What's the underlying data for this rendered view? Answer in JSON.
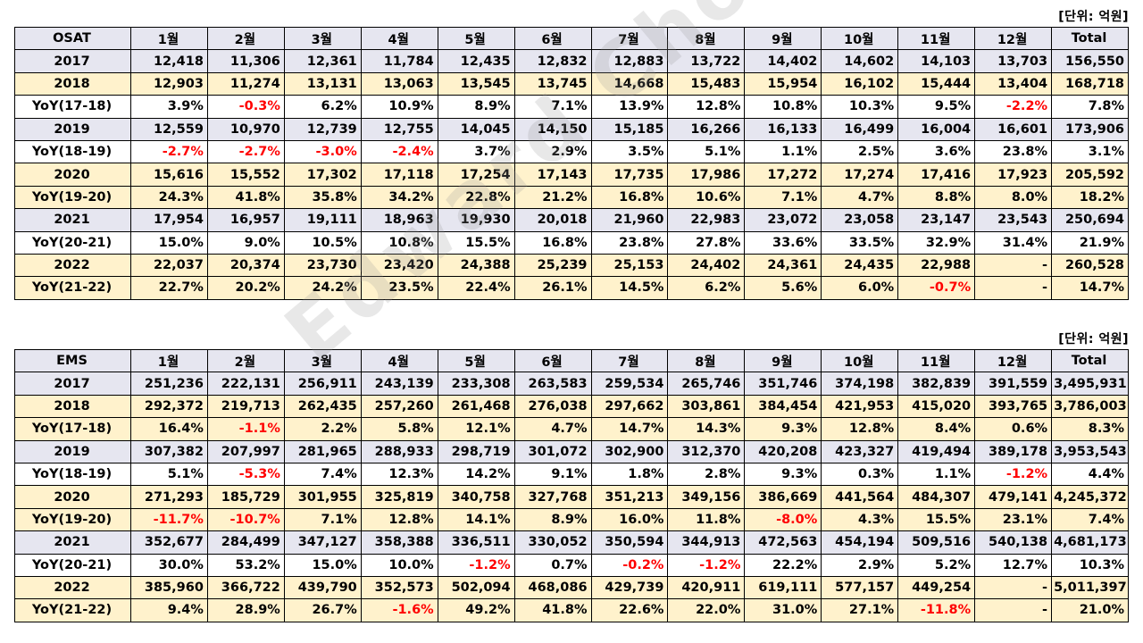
{
  "unit_label": "[단위: 억원]",
  "watermark": "Edward Choi",
  "tables": [
    {
      "header": [
        "OSAT",
        "1월",
        "2월",
        "3월",
        "4월",
        "5월",
        "6월",
        "7월",
        "8월",
        "9월",
        "10월",
        "11월",
        "12월",
        "Total"
      ],
      "rows": [
        {
          "kind": "year-a",
          "cells": [
            "2017",
            "12,418",
            "11,306",
            "12,361",
            "11,784",
            "12,435",
            "12,832",
            "12,883",
            "13,722",
            "14,402",
            "14,602",
            "14,103",
            "13,703",
            "156,550"
          ]
        },
        {
          "kind": "year-b",
          "cells": [
            "2018",
            "12,903",
            "11,274",
            "13,131",
            "13,063",
            "13,545",
            "13,745",
            "14,668",
            "15,483",
            "15,954",
            "16,102",
            "15,444",
            "13,404",
            "168,718"
          ]
        },
        {
          "kind": "yoy",
          "cells": [
            "YoY(17-18)",
            "3.9%",
            "-0.3%",
            "6.2%",
            "10.9%",
            "8.9%",
            "7.1%",
            "13.9%",
            "12.8%",
            "10.8%",
            "10.3%",
            "9.5%",
            "-2.2%",
            "7.8%"
          ]
        },
        {
          "kind": "year-a",
          "cells": [
            "2019",
            "12,559",
            "10,970",
            "12,739",
            "12,755",
            "14,045",
            "14,150",
            "15,185",
            "16,266",
            "16,133",
            "16,499",
            "16,004",
            "16,601",
            "173,906"
          ]
        },
        {
          "kind": "yoy",
          "cells": [
            "YoY(18-19)",
            "-2.7%",
            "-2.7%",
            "-3.0%",
            "-2.4%",
            "3.7%",
            "2.9%",
            "3.5%",
            "5.1%",
            "1.1%",
            "2.5%",
            "3.6%",
            "23.8%",
            "3.1%"
          ]
        },
        {
          "kind": "year-b",
          "cells": [
            "2020",
            "15,616",
            "15,552",
            "17,302",
            "17,118",
            "17,254",
            "17,143",
            "17,735",
            "17,986",
            "17,272",
            "17,274",
            "17,416",
            "17,923",
            "205,592"
          ]
        },
        {
          "kind": "year-b",
          "cells": [
            "YoY(19-20)",
            "24.3%",
            "41.8%",
            "35.8%",
            "34.2%",
            "22.8%",
            "21.2%",
            "16.8%",
            "10.6%",
            "7.1%",
            "4.7%",
            "8.8%",
            "8.0%",
            "18.2%"
          ]
        },
        {
          "kind": "year-a",
          "cells": [
            "2021",
            "17,954",
            "16,957",
            "19,111",
            "18,963",
            "19,930",
            "20,018",
            "21,960",
            "22,983",
            "23,072",
            "23,058",
            "23,147",
            "23,543",
            "250,694"
          ]
        },
        {
          "kind": "yoy",
          "cells": [
            "YoY(20-21)",
            "15.0%",
            "9.0%",
            "10.5%",
            "10.8%",
            "15.5%",
            "16.8%",
            "23.8%",
            "27.8%",
            "33.6%",
            "33.5%",
            "32.9%",
            "31.4%",
            "21.9%"
          ]
        },
        {
          "kind": "year-b",
          "cells": [
            "2022",
            "22,037",
            "20,374",
            "23,730",
            "23,420",
            "24,388",
            "25,239",
            "25,153",
            "24,402",
            "24,361",
            "24,435",
            "22,988",
            "-",
            "260,528"
          ]
        },
        {
          "kind": "year-b",
          "cells": [
            "YoY(21-22)",
            "22.7%",
            "20.2%",
            "24.2%",
            "23.5%",
            "22.4%",
            "26.1%",
            "14.5%",
            "6.2%",
            "5.6%",
            "6.0%",
            "-0.7%",
            "-",
            "14.7%"
          ]
        }
      ]
    },
    {
      "header": [
        "EMS",
        "1월",
        "2월",
        "3월",
        "4월",
        "5월",
        "6월",
        "7월",
        "8월",
        "9월",
        "10월",
        "11월",
        "12월",
        "Total"
      ],
      "rows": [
        {
          "kind": "year-a",
          "cells": [
            "2017",
            "251,236",
            "222,131",
            "256,911",
            "243,139",
            "233,308",
            "263,583",
            "259,534",
            "265,746",
            "351,746",
            "374,198",
            "382,839",
            "391,559",
            "3,495,931"
          ]
        },
        {
          "kind": "year-b",
          "cells": [
            "2018",
            "292,372",
            "219,713",
            "262,435",
            "257,260",
            "261,468",
            "276,038",
            "297,662",
            "303,861",
            "384,454",
            "421,953",
            "415,020",
            "393,765",
            "3,786,003"
          ]
        },
        {
          "kind": "year-b",
          "cells": [
            "YoY(17-18)",
            "16.4%",
            "-1.1%",
            "2.2%",
            "5.8%",
            "12.1%",
            "4.7%",
            "14.7%",
            "14.3%",
            "9.3%",
            "12.8%",
            "8.4%",
            "0.6%",
            "8.3%"
          ]
        },
        {
          "kind": "year-a",
          "cells": [
            "2019",
            "307,382",
            "207,997",
            "281,965",
            "288,933",
            "298,719",
            "301,072",
            "302,900",
            "312,370",
            "420,208",
            "423,327",
            "419,494",
            "389,178",
            "3,953,543"
          ]
        },
        {
          "kind": "yoy",
          "cells": [
            "YoY(18-19)",
            "5.1%",
            "-5.3%",
            "7.4%",
            "12.3%",
            "14.2%",
            "9.1%",
            "1.8%",
            "2.8%",
            "9.3%",
            "0.3%",
            "1.1%",
            "-1.2%",
            "4.4%"
          ]
        },
        {
          "kind": "year-b",
          "cells": [
            "2020",
            "271,293",
            "185,729",
            "301,955",
            "325,819",
            "340,758",
            "327,768",
            "351,213",
            "349,156",
            "386,669",
            "441,564",
            "484,307",
            "479,141",
            "4,245,372"
          ]
        },
        {
          "kind": "year-b",
          "cells": [
            "YoY(19-20)",
            "-11.7%",
            "-10.7%",
            "7.1%",
            "12.8%",
            "14.1%",
            "8.9%",
            "16.0%",
            "11.8%",
            "-8.0%",
            "4.3%",
            "15.5%",
            "23.1%",
            "7.4%"
          ]
        },
        {
          "kind": "year-a",
          "cells": [
            "2021",
            "352,677",
            "284,499",
            "347,127",
            "358,388",
            "336,511",
            "330,052",
            "350,594",
            "344,913",
            "472,563",
            "454,194",
            "509,516",
            "540,138",
            "4,681,173"
          ]
        },
        {
          "kind": "yoy",
          "cells": [
            "YoY(20-21)",
            "30.0%",
            "53.2%",
            "15.0%",
            "10.0%",
            "-1.2%",
            "0.7%",
            "-0.2%",
            "-1.2%",
            "22.2%",
            "2.9%",
            "5.2%",
            "12.7%",
            "10.3%"
          ]
        },
        {
          "kind": "year-b",
          "cells": [
            "2022",
            "385,960",
            "366,722",
            "439,790",
            "352,573",
            "502,094",
            "468,086",
            "429,739",
            "420,911",
            "619,111",
            "577,157",
            "449,254",
            "-",
            "5,011,397"
          ]
        },
        {
          "kind": "year-b",
          "cells": [
            "YoY(21-22)",
            "9.4%",
            "28.9%",
            "26.7%",
            "-1.6%",
            "49.2%",
            "41.8%",
            "22.6%",
            "22.0%",
            "31.0%",
            "27.1%",
            "-11.8%",
            "-",
            "21.0%"
          ]
        }
      ]
    }
  ]
}
